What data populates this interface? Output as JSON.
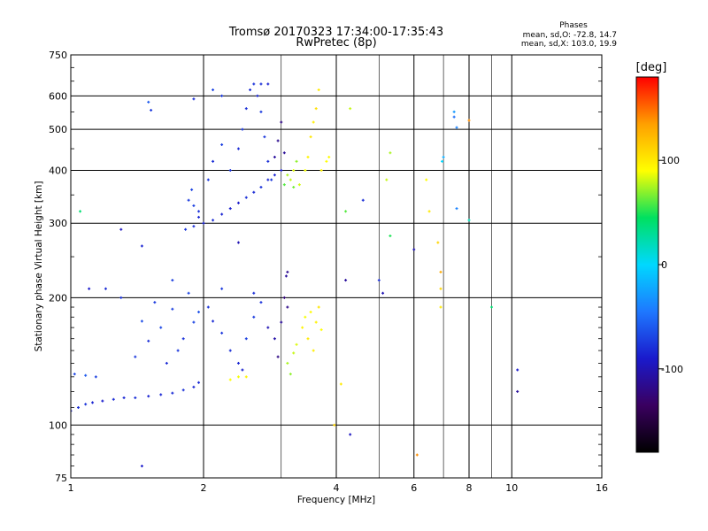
{
  "chart_data": {
    "type": "scatter",
    "title": "Tromsø 20170323 17:34:00-17:35:43",
    "subtitle": "RwPretec (8p)",
    "xlabel": "Frequency [MHz]",
    "ylabel": "Stationary phase Virtual Height [km]",
    "x_scale": "log",
    "y_scale": "log",
    "xlim": [
      1,
      16
    ],
    "ylim": [
      75,
      750
    ],
    "x_ticks": [
      1,
      2,
      4,
      6,
      8,
      10,
      16
    ],
    "x_tick_labels": [
      "1",
      "2",
      "4",
      "6",
      "8",
      "10",
      "16"
    ],
    "x_minor_grid": [
      3,
      5,
      7,
      9
    ],
    "y_ticks": [
      75,
      100,
      200,
      300,
      400,
      500,
      600,
      750
    ],
    "y_tick_labels": [
      "75",
      "100",
      "200",
      "300",
      "400",
      "500",
      "600",
      "750"
    ],
    "grid": true,
    "stats": {
      "header": "Phases",
      "line_o": "mean, sd,O: -72.8, 14.7",
      "line_x": "mean, sd,X: 103.0, 19.9"
    },
    "colorbar": {
      "label": "[deg]",
      "range": [
        -180,
        180
      ],
      "ticks": [
        100,
        0,
        -100
      ],
      "tick_labels": [
        "100",
        "0",
        "-100"
      ],
      "colors": [
        "#000000",
        "#3a0060",
        "#1a1acc",
        "#1e78ff",
        "#00d8ff",
        "#00e060",
        "#ffff00",
        "#ffa000",
        "#ff0000"
      ]
    },
    "series": [
      {
        "points": [
          [
            1.0,
            108,
            -82
          ],
          [
            1.04,
            110,
            -80
          ],
          [
            1.08,
            112,
            -78
          ],
          [
            1.12,
            113,
            -85
          ],
          [
            1.18,
            114,
            -88
          ],
          [
            1.25,
            115,
            -82
          ],
          [
            1.32,
            116,
            -84
          ],
          [
            1.4,
            116,
            -80
          ],
          [
            1.5,
            117,
            -86
          ],
          [
            1.6,
            118,
            -83
          ],
          [
            1.7,
            119,
            -81
          ],
          [
            1.8,
            121,
            -79
          ],
          [
            1.9,
            123,
            -84
          ],
          [
            1.95,
            126,
            -82
          ],
          [
            1.02,
            132,
            -70
          ],
          [
            1.08,
            131,
            -60
          ],
          [
            1.14,
            130,
            -72
          ],
          [
            1.4,
            145,
            -75
          ],
          [
            1.5,
            158,
            -80
          ],
          [
            1.6,
            170,
            -68
          ],
          [
            1.7,
            188,
            -72
          ],
          [
            1.8,
            160,
            -78
          ],
          [
            1.9,
            175,
            -70
          ],
          [
            1.45,
            176,
            -66
          ],
          [
            1.55,
            195,
            -74
          ],
          [
            1.65,
            140,
            -82
          ],
          [
            1.75,
            150,
            -76
          ],
          [
            1.85,
            205,
            -70
          ],
          [
            1.95,
            185,
            -64
          ],
          [
            1.3,
            200,
            -78
          ],
          [
            1.2,
            210,
            -82
          ],
          [
            1.7,
            220,
            -72
          ],
          [
            2.05,
            190,
            -78
          ],
          [
            2.1,
            176,
            -82
          ],
          [
            2.2,
            165,
            -76
          ],
          [
            2.3,
            150,
            -80
          ],
          [
            2.4,
            140,
            -84
          ],
          [
            2.5,
            160,
            -72
          ],
          [
            2.6,
            180,
            -74
          ],
          [
            2.7,
            195,
            -78
          ],
          [
            2.45,
            135,
            -86
          ],
          [
            2.8,
            170,
            -100
          ],
          [
            2.9,
            160,
            -105
          ],
          [
            3.0,
            175,
            -112
          ],
          [
            3.1,
            190,
            -118
          ],
          [
            2.95,
            145,
            -120
          ],
          [
            3.05,
            200,
            -125
          ],
          [
            3.1,
            230,
            -115
          ],
          [
            3.08,
            225,
            -110
          ],
          [
            2.2,
            210,
            -74
          ],
          [
            2.6,
            205,
            -80
          ],
          [
            3.1,
            140,
            75
          ],
          [
            3.2,
            148,
            80
          ],
          [
            3.25,
            155,
            84
          ],
          [
            3.15,
            132,
            70
          ],
          [
            3.35,
            170,
            95
          ],
          [
            3.4,
            180,
            88
          ],
          [
            3.45,
            160,
            100
          ],
          [
            3.5,
            185,
            92
          ],
          [
            3.6,
            175,
            96
          ],
          [
            3.65,
            190,
            102
          ],
          [
            3.55,
            150,
            98
          ],
          [
            3.7,
            168,
            90
          ],
          [
            2.3,
            128,
            90
          ],
          [
            2.4,
            130,
            88
          ],
          [
            2.5,
            130,
            95
          ],
          [
            1.82,
            290,
            -76
          ],
          [
            1.9,
            295,
            -80
          ],
          [
            1.95,
            310,
            -84
          ],
          [
            2.0,
            300,
            -86
          ],
          [
            2.1,
            305,
            -82
          ],
          [
            2.2,
            315,
            -85
          ],
          [
            2.3,
            325,
            -88
          ],
          [
            2.4,
            335,
            -90
          ],
          [
            2.5,
            345,
            -80
          ],
          [
            2.6,
            355,
            -82
          ],
          [
            2.7,
            365,
            -78
          ],
          [
            2.8,
            380,
            -84
          ],
          [
            2.9,
            390,
            -86
          ],
          [
            3.0,
            400,
            -88
          ],
          [
            1.85,
            340,
            -74
          ],
          [
            1.88,
            360,
            -70
          ],
          [
            1.9,
            330,
            -72
          ],
          [
            1.95,
            320,
            -78
          ],
          [
            2.05,
            380,
            -76
          ],
          [
            2.1,
            420,
            -80
          ],
          [
            2.2,
            460,
            -72
          ],
          [
            2.3,
            400,
            -78
          ],
          [
            2.4,
            450,
            -82
          ],
          [
            2.45,
            500,
            -76
          ],
          [
            2.5,
            560,
            -80
          ],
          [
            2.55,
            620,
            -82
          ],
          [
            2.6,
            640,
            -78
          ],
          [
            2.65,
            600,
            -84
          ],
          [
            2.7,
            550,
            -74
          ],
          [
            2.75,
            480,
            -76
          ],
          [
            2.8,
            420,
            -80
          ],
          [
            2.85,
            380,
            -76
          ],
          [
            2.9,
            430,
            -110
          ],
          [
            2.95,
            470,
            -115
          ],
          [
            3.0,
            520,
            -120
          ],
          [
            3.05,
            440,
            -112
          ],
          [
            2.8,
            640,
            -86
          ],
          [
            2.7,
            640,
            -80
          ],
          [
            3.1,
            390,
            75
          ],
          [
            3.15,
            380,
            80
          ],
          [
            3.2,
            400,
            85
          ],
          [
            3.25,
            420,
            70
          ],
          [
            3.3,
            370,
            82
          ],
          [
            3.4,
            400,
            88
          ],
          [
            3.45,
            430,
            95
          ],
          [
            3.5,
            480,
            102
          ],
          [
            3.55,
            520,
            98
          ],
          [
            3.6,
            560,
            105
          ],
          [
            3.65,
            620,
            100
          ],
          [
            3.7,
            400,
            96
          ],
          [
            3.8,
            420,
            90
          ],
          [
            3.85,
            430,
            92
          ],
          [
            3.05,
            370,
            60
          ],
          [
            3.2,
            365,
            65
          ],
          [
            1.05,
            320,
            40
          ],
          [
            1.1,
            210,
            -90
          ],
          [
            1.3,
            290,
            -95
          ],
          [
            1.45,
            265,
            -85
          ],
          [
            1.5,
            580,
            -60
          ],
          [
            1.52,
            555,
            -75
          ],
          [
            1.45,
            80,
            -90
          ],
          [
            1.9,
            590,
            -80
          ],
          [
            2.1,
            620,
            -70
          ],
          [
            2.2,
            600,
            -75
          ],
          [
            2.4,
            270,
            -100
          ],
          [
            4.2,
            320,
            60
          ],
          [
            4.3,
            560,
            80
          ],
          [
            4.2,
            220,
            -110
          ],
          [
            4.3,
            95,
            -95
          ],
          [
            4.6,
            340,
            -80
          ],
          [
            5.0,
            220,
            -80
          ],
          [
            5.1,
            205,
            -100
          ],
          [
            5.2,
            380,
            80
          ],
          [
            5.3,
            440,
            75
          ],
          [
            5.3,
            280,
            50
          ],
          [
            6.0,
            260,
            -100
          ],
          [
            6.1,
            85,
            140
          ],
          [
            6.4,
            380,
            90
          ],
          [
            6.5,
            320,
            100
          ],
          [
            6.8,
            270,
            110
          ],
          [
            6.9,
            230,
            130
          ],
          [
            6.9,
            210,
            110
          ],
          [
            6.9,
            190,
            100
          ],
          [
            6.95,
            420,
            0
          ],
          [
            7.0,
            430,
            -20
          ],
          [
            7.4,
            550,
            -30
          ],
          [
            7.4,
            535,
            -50
          ],
          [
            7.5,
            505,
            -40
          ],
          [
            7.5,
            325,
            -40
          ],
          [
            8.0,
            305,
            20
          ],
          [
            8.0,
            525,
            140
          ],
          [
            9.0,
            190,
            40
          ],
          [
            10.3,
            135,
            -90
          ],
          [
            10.3,
            120,
            -110
          ],
          [
            4.1,
            125,
            100
          ],
          [
            3.96,
            100,
            110
          ]
        ]
      }
    ]
  }
}
